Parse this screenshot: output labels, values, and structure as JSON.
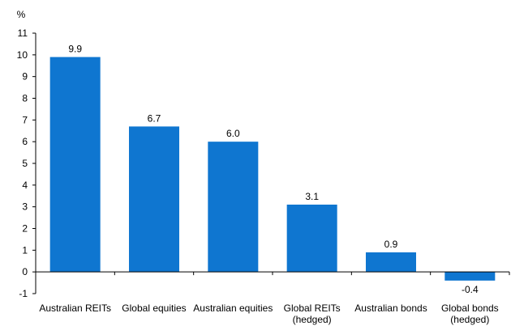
{
  "chart_data": {
    "type": "bar",
    "unit_label": "%",
    "categories": [
      [
        "Australian REITs"
      ],
      [
        "Global equities"
      ],
      [
        "Australian equities"
      ],
      [
        "Global REITs",
        "(hedged)"
      ],
      [
        "Australian bonds"
      ],
      [
        "Global bonds",
        "(hedged)"
      ]
    ],
    "values": [
      9.9,
      6.7,
      6.0,
      3.1,
      0.9,
      -0.4
    ],
    "value_labels": [
      "9.9",
      "6.7",
      "6.0",
      "3.1",
      "0.9",
      "-0.4"
    ],
    "ylim": [
      -1,
      11
    ],
    "yticks": [
      -1,
      0,
      1,
      2,
      3,
      4,
      5,
      6,
      7,
      8,
      9,
      10,
      11
    ],
    "grid": false,
    "legend": "none",
    "bar_color": "#0F76D0",
    "axis_color": "#000000"
  }
}
